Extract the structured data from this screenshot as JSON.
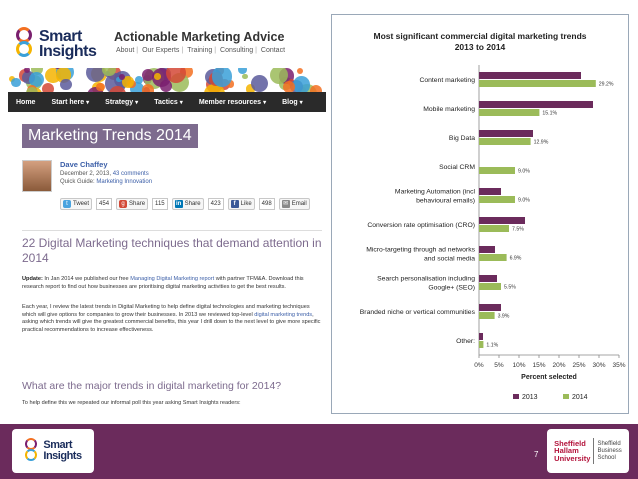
{
  "web": {
    "logo": {
      "line1": "Smart",
      "line2": "Insights"
    },
    "tagline": "Actionable Marketing Advice",
    "top_links": [
      "About",
      "Our Experts",
      "Training",
      "Consulting",
      "Contact"
    ],
    "nav": [
      "Home",
      "Start here",
      "Strategy",
      "Tactics",
      "Member resources",
      "Blog"
    ],
    "post_title": "Marketing Trends 2014",
    "author": {
      "name": "Dave Chaffey",
      "date": "December 2, 2013,",
      "comments": "43 comments",
      "guide_label": "Quick Guide:",
      "guide_link": "Marketing Innovation"
    },
    "share": {
      "tweet": "Tweet",
      "tweet_count": "454",
      "gplus": "Share",
      "gplus_count": "115",
      "linkedin": "Share",
      "linkedin_count": "423",
      "like": "Like",
      "like_count": "498",
      "email": "Email"
    },
    "article_heading": "22 Digital Marketing techniques that demand attention in 2014",
    "update_para": {
      "label": "Update:",
      "text1": " In Jan 2014 we published our free ",
      "link": "Managing Digital Marketing report",
      "text2": " with partner TFM&A. Download this research report to find out how businesses are prioritising digital marketing activities to get the best results."
    },
    "each_para": {
      "text1": "Each year, I review the latest trends in Digital Marketing to help define digital technologies and marketing techniques which will give options for companies to grow their businesses. In 2013 we reviewed top-level ",
      "link": "digital marketing trends",
      "text2": ", asking which trends will give the greatest commercial benefits, this year I drill down to the next level to give more specific practical recommendations to increase effectiveness."
    },
    "subheading": "What are the major trends in digital marketing for 2014?",
    "define_para": "To help define this we repeated our informal poll this year asking Smart Insights readers:"
  },
  "chart_data": {
    "type": "bar",
    "orientation": "horizontal",
    "title": "Most significant commercial digital marketing trends 2013 to 2014",
    "xlabel": "Percent selected",
    "ylabel": "",
    "xlim": [
      0,
      35
    ],
    "xticks": [
      "0%",
      "5%",
      "10%",
      "15%",
      "20%",
      "25%",
      "30%",
      "35%"
    ],
    "categories": [
      [
        "Content marketing"
      ],
      [
        "Mobile marketing"
      ],
      [
        "Big Data"
      ],
      [
        "Social CRM"
      ],
      [
        "Marketing Automation (incl",
        "behavioural emails)"
      ],
      [
        "Conversion rate optimisation (CRO)"
      ],
      [
        "Micro-targeting through ad networks",
        "and social media"
      ],
      [
        "Search personalisation including",
        "Google+ (SEO)"
      ],
      [
        "Branded niche or vertical communities"
      ],
      [
        "Other:"
      ]
    ],
    "series": [
      {
        "name": "2013",
        "color": "#6b2b5c",
        "values": [
          25.5,
          28.5,
          13.5,
          0,
          5.5,
          11.5,
          4.0,
          4.5,
          5.5,
          1.0
        ]
      },
      {
        "name": "2014",
        "color": "#9bbb59",
        "values": [
          29.2,
          15.1,
          12.9,
          9.0,
          9.0,
          7.5,
          6.9,
          5.5,
          3.9,
          1.1
        ]
      }
    ],
    "data_labels_2014": [
      "29.2%",
      "15.1%",
      "12.9%",
      "9.0%",
      "9.0%",
      "7.5%",
      "6.9%",
      "5.5%",
      "3.9%",
      "1.1%"
    ],
    "legend_position": "bottom",
    "grid": false
  },
  "footer": {
    "logo": {
      "line1": "Smart",
      "line2": "Insights"
    },
    "page_number": "7",
    "shu": {
      "line1": "Sheffield",
      "line2": "Hallam",
      "line3": "University",
      "r1": "Sheffield",
      "r2": "Business",
      "r3": "School"
    }
  }
}
